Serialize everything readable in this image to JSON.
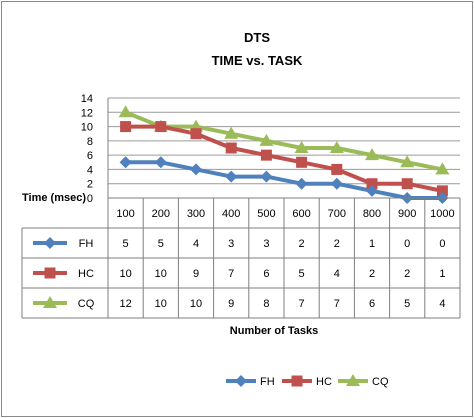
{
  "chart_data": {
    "type": "line",
    "title": "DTS",
    "subtitle": "TIME vs. TASK",
    "xlabel": "Number of Tasks",
    "ylabel": "Time (msec)",
    "ylim": [
      0,
      14
    ],
    "yticks": [
      0,
      2,
      4,
      6,
      8,
      10,
      12,
      14
    ],
    "categories": [
      "100",
      "200",
      "300",
      "400",
      "500",
      "600",
      "700",
      "800",
      "900",
      "1000"
    ],
    "grid": true,
    "legend_position": "bottom",
    "data_table": true,
    "series": [
      {
        "name": "FH",
        "color": "#4f81bd",
        "marker": "diamond",
        "values": [
          5,
          5,
          4,
          3,
          3,
          2,
          2,
          1,
          0,
          0
        ]
      },
      {
        "name": "HC",
        "color": "#c0504d",
        "marker": "square",
        "values": [
          10,
          10,
          9,
          7,
          6,
          5,
          4,
          2,
          2,
          1
        ]
      },
      {
        "name": "CQ",
        "color": "#9bbb59",
        "marker": "triangle",
        "values": [
          12,
          10,
          10,
          9,
          8,
          7,
          7,
          6,
          5,
          4
        ]
      }
    ]
  }
}
